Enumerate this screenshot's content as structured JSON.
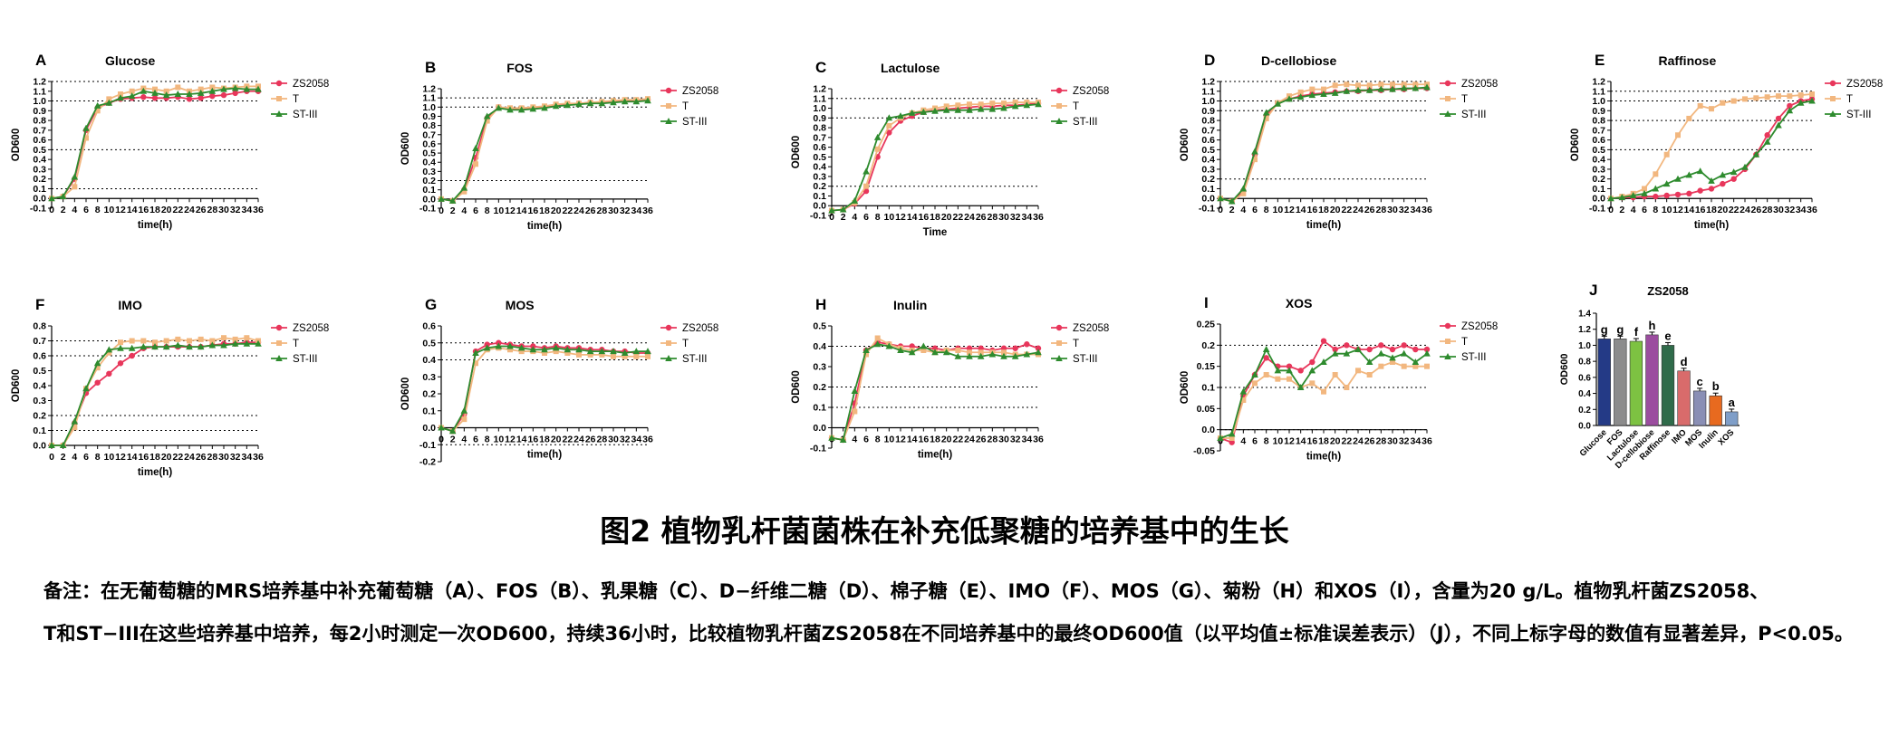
{
  "figure": {
    "title": "图2 植物乳杆菌菌株在补充低聚糖的培养基中的生长",
    "note": [
      "备注：在无葡萄糖的MRS培养基中补充葡萄糖（A）、FOS（B）、乳果糖（C）、D−纤维二糖（D）、棉子糖（E）、IMO（F）、MOS（G）、菊粉（H）和XOS（I），含量为20 g/L。植物乳杆菌ZS2058、",
      "T和ST−III在这些培养基中培养，每2小时测定一次OD600，持续36小时，比较植物乳杆菌ZS2058在不同培养基中的最终OD600值（以平均值±标准误差表示）（J），不同上标字母的数值有显著差异，P<0.05。"
    ]
  },
  "colors": {
    "ZS2058": "#e8365b",
    "T": "#f2b77f",
    "ST-III": "#2e8b2e"
  },
  "chart_data": [
    {
      "letter": "A",
      "type": "line",
      "title": "Glucose",
      "xlabel": "time(h)",
      "ylabel": "OD600",
      "ylim": [
        -0.1,
        1.2
      ],
      "yticks": [
        -0.1,
        0,
        0.1,
        0.2,
        0.3,
        0.4,
        0.5,
        0.6,
        0.7,
        0.8,
        0.9,
        1.0,
        1.1,
        1.2
      ],
      "dotted_lines": [
        0.1,
        0.5,
        1.0,
        1.2
      ],
      "x": [
        0,
        2,
        4,
        6,
        8,
        10,
        12,
        14,
        16,
        18,
        20,
        22,
        24,
        26,
        28,
        30,
        32,
        34,
        36
      ],
      "series": [
        {
          "name": "ZS2058",
          "values": [
            0,
            0.02,
            0.2,
            0.7,
            0.93,
            0.98,
            1.02,
            1.03,
            1.04,
            1.03,
            1.03,
            1.04,
            1.02,
            1.03,
            1.05,
            1.06,
            1.08,
            1.1,
            1.1
          ]
        },
        {
          "name": "T",
          "values": [
            0,
            0.02,
            0.12,
            0.62,
            0.9,
            1.02,
            1.07,
            1.1,
            1.13,
            1.12,
            1.1,
            1.14,
            1.1,
            1.12,
            1.14,
            1.13,
            1.14,
            1.15,
            1.15
          ]
        },
        {
          "name": "ST-III",
          "values": [
            0,
            0.02,
            0.22,
            0.72,
            0.95,
            0.98,
            1.03,
            1.05,
            1.1,
            1.08,
            1.06,
            1.07,
            1.07,
            1.08,
            1.1,
            1.12,
            1.13,
            1.12,
            1.12
          ]
        }
      ]
    },
    {
      "letter": "B",
      "type": "line",
      "title": "FOS",
      "xlabel": "time(h)",
      "ylabel": "OD600",
      "ylim": [
        -0.1,
        1.2
      ],
      "yticks": [
        -0.1,
        0,
        0.1,
        0.2,
        0.3,
        0.4,
        0.5,
        0.6,
        0.7,
        0.8,
        0.9,
        1.0,
        1.1,
        1.2
      ],
      "dotted_lines": [
        0.2,
        1.0,
        1.1
      ],
      "x": [
        0,
        2,
        4,
        6,
        8,
        10,
        12,
        14,
        16,
        18,
        20,
        22,
        24,
        26,
        28,
        30,
        32,
        34,
        36
      ],
      "series": [
        {
          "name": "ZS2058",
          "values": [
            0,
            -0.02,
            0.1,
            0.45,
            0.88,
            1.0,
            0.98,
            0.98,
            0.99,
            1.0,
            1.02,
            1.03,
            1.04,
            1.05,
            1.05,
            1.06,
            1.07,
            1.07,
            1.08
          ]
        },
        {
          "name": "T",
          "values": [
            0,
            -0.02,
            0.08,
            0.38,
            0.85,
            1.0,
            0.99,
            0.99,
            1.0,
            1.01,
            1.03,
            1.04,
            1.04,
            1.05,
            1.06,
            1.07,
            1.08,
            1.08,
            1.09
          ]
        },
        {
          "name": "ST-III",
          "values": [
            0,
            -0.02,
            0.12,
            0.55,
            0.9,
            0.99,
            0.97,
            0.97,
            0.98,
            0.99,
            1.01,
            1.02,
            1.03,
            1.04,
            1.04,
            1.05,
            1.06,
            1.06,
            1.07
          ]
        }
      ]
    },
    {
      "letter": "C",
      "type": "line",
      "title": "Lactulose",
      "xlabel": "Time",
      "ylabel": "OD600",
      "ylim": [
        -0.1,
        1.2
      ],
      "yticks": [
        -0.1,
        0,
        0.1,
        0.2,
        0.3,
        0.4,
        0.5,
        0.6,
        0.7,
        0.8,
        0.9,
        1.0,
        1.1,
        1.2
      ],
      "dotted_lines": [
        0.2,
        0.9,
        1.1
      ],
      "x": [
        0,
        2,
        4,
        6,
        8,
        10,
        12,
        14,
        16,
        18,
        20,
        22,
        24,
        26,
        28,
        30,
        32,
        34,
        36
      ],
      "series": [
        {
          "name": "ZS2058",
          "values": [
            -0.05,
            -0.04,
            0.02,
            0.15,
            0.5,
            0.75,
            0.87,
            0.92,
            0.96,
            0.98,
            0.99,
            1.0,
            1.01,
            1.02,
            1.02,
            1.03,
            1.03,
            1.04,
            1.05
          ]
        },
        {
          "name": "T",
          "values": [
            -0.05,
            -0.04,
            0.03,
            0.2,
            0.58,
            0.82,
            0.9,
            0.95,
            0.98,
            1.0,
            1.02,
            1.03,
            1.04,
            1.04,
            1.05,
            1.05,
            1.06,
            1.06,
            1.06
          ]
        },
        {
          "name": "ST-III",
          "values": [
            -0.05,
            -0.04,
            0.05,
            0.35,
            0.7,
            0.9,
            0.92,
            0.95,
            0.96,
            0.97,
            0.98,
            0.98,
            0.98,
            0.99,
            0.99,
            1.0,
            1.02,
            1.03,
            1.04
          ]
        }
      ]
    },
    {
      "letter": "D",
      "type": "line",
      "title": "D-cellobiose",
      "xlabel": "time(h)",
      "ylabel": "OD600",
      "ylim": [
        -0.1,
        1.2
      ],
      "yticks": [
        -0.1,
        0,
        0.1,
        0.2,
        0.3,
        0.4,
        0.5,
        0.6,
        0.7,
        0.8,
        0.9,
        1.0,
        1.1,
        1.2
      ],
      "dotted_lines": [
        0.2,
        0.9,
        1.0,
        1.2
      ],
      "x": [
        0,
        2,
        4,
        6,
        8,
        10,
        12,
        14,
        16,
        18,
        20,
        22,
        24,
        26,
        28,
        30,
        32,
        34,
        36
      ],
      "series": [
        {
          "name": "ZS2058",
          "values": [
            0,
            -0.03,
            0.08,
            0.45,
            0.85,
            0.98,
            1.02,
            1.05,
            1.07,
            1.08,
            1.09,
            1.1,
            1.1,
            1.11,
            1.11,
            1.12,
            1.12,
            1.13,
            1.13
          ]
        },
        {
          "name": "T",
          "values": [
            0,
            -0.03,
            0.05,
            0.4,
            0.82,
            0.98,
            1.05,
            1.09,
            1.12,
            1.12,
            1.16,
            1.17,
            1.16,
            1.16,
            1.17,
            1.17,
            1.17,
            1.17,
            1.17
          ]
        },
        {
          "name": "ST-III",
          "values": [
            0,
            -0.03,
            0.1,
            0.48,
            0.88,
            0.97,
            1.02,
            1.04,
            1.06,
            1.07,
            1.08,
            1.1,
            1.11,
            1.11,
            1.12,
            1.12,
            1.13,
            1.13,
            1.14
          ]
        }
      ]
    },
    {
      "letter": "E",
      "type": "line",
      "title": "Raffinose",
      "xlabel": "time(h)",
      "ylabel": "OD600",
      "ylim": [
        -0.1,
        1.2
      ],
      "yticks": [
        -0.1,
        0,
        0.1,
        0.2,
        0.3,
        0.4,
        0.5,
        0.6,
        0.7,
        0.8,
        0.9,
        1.0,
        1.1,
        1.2
      ],
      "dotted_lines": [
        0.5,
        0.8,
        1.0,
        1.1
      ],
      "x": [
        0,
        2,
        4,
        6,
        8,
        10,
        12,
        14,
        16,
        18,
        20,
        22,
        24,
        26,
        28,
        30,
        32,
        34,
        36
      ],
      "series": [
        {
          "name": "ZS2058",
          "values": [
            0,
            0.01,
            0.01,
            0.02,
            0.02,
            0.03,
            0.04,
            0.05,
            0.08,
            0.1,
            0.15,
            0.2,
            0.3,
            0.45,
            0.65,
            0.82,
            0.95,
            1.0,
            1.02
          ]
        },
        {
          "name": "T",
          "values": [
            0,
            0.02,
            0.05,
            0.1,
            0.25,
            0.45,
            0.65,
            0.82,
            0.95,
            0.92,
            0.98,
            1.0,
            1.02,
            1.03,
            1.04,
            1.05,
            1.05,
            1.06,
            1.07
          ]
        },
        {
          "name": "ST-III",
          "values": [
            0,
            0.01,
            0.03,
            0.05,
            0.1,
            0.15,
            0.2,
            0.24,
            0.28,
            0.18,
            0.24,
            0.27,
            0.32,
            0.45,
            0.58,
            0.75,
            0.9,
            0.98,
            1.0
          ]
        }
      ]
    },
    {
      "letter": "F",
      "type": "line",
      "title": "IMO",
      "xlabel": "time(h)",
      "ylabel": "OD600",
      "ylim": [
        0,
        0.8
      ],
      "yticks": [
        0,
        0.1,
        0.2,
        0.3,
        0.4,
        0.5,
        0.6,
        0.7,
        0.8
      ],
      "dotted_lines": [
        0.1,
        0.2,
        0.6,
        0.7
      ],
      "x": [
        0,
        2,
        4,
        6,
        8,
        10,
        12,
        14,
        16,
        18,
        20,
        22,
        24,
        26,
        28,
        30,
        32,
        34,
        36
      ],
      "series": [
        {
          "name": "ZS2058",
          "values": [
            0,
            0,
            0.15,
            0.35,
            0.42,
            0.48,
            0.55,
            0.6,
            0.65,
            0.66,
            0.66,
            0.66,
            0.66,
            0.66,
            0.67,
            0.68,
            0.68,
            0.69,
            0.69
          ]
        },
        {
          "name": "T",
          "values": [
            0,
            0,
            0.12,
            0.38,
            0.52,
            0.62,
            0.69,
            0.7,
            0.7,
            0.69,
            0.7,
            0.71,
            0.7,
            0.71,
            0.7,
            0.72,
            0.71,
            0.72,
            0.7
          ]
        },
        {
          "name": "ST-III",
          "values": [
            0,
            0,
            0.16,
            0.38,
            0.55,
            0.64,
            0.65,
            0.65,
            0.66,
            0.66,
            0.66,
            0.67,
            0.66,
            0.66,
            0.67,
            0.67,
            0.68,
            0.68,
            0.68
          ]
        }
      ]
    },
    {
      "letter": "G",
      "type": "line",
      "title": "MOS",
      "xlabel": "time(h)",
      "ylabel": "OD600",
      "ylim": [
        -0.2,
        0.6
      ],
      "yticks": [
        -0.2,
        -0.1,
        0,
        0.1,
        0.2,
        0.3,
        0.4,
        0.5,
        0.6
      ],
      "dotted_lines": [
        -0.1,
        0.4,
        0.5
      ],
      "x": [
        0,
        2,
        4,
        6,
        8,
        10,
        12,
        14,
        16,
        18,
        20,
        22,
        24,
        26,
        28,
        30,
        32,
        34,
        36
      ],
      "series": [
        {
          "name": "ZS2058",
          "values": [
            0,
            -0.02,
            0.08,
            0.45,
            0.49,
            0.5,
            0.49,
            0.48,
            0.48,
            0.47,
            0.48,
            0.47,
            0.47,
            0.46,
            0.46,
            0.45,
            0.45,
            0.44,
            0.44
          ]
        },
        {
          "name": "T",
          "values": [
            0,
            -0.02,
            0.05,
            0.38,
            0.46,
            0.47,
            0.46,
            0.45,
            0.45,
            0.44,
            0.45,
            0.44,
            0.43,
            0.43,
            0.43,
            0.42,
            0.42,
            0.42,
            0.42
          ]
        },
        {
          "name": "ST-III",
          "values": [
            0,
            -0.02,
            0.1,
            0.44,
            0.47,
            0.48,
            0.48,
            0.47,
            0.46,
            0.46,
            0.47,
            0.46,
            0.46,
            0.45,
            0.45,
            0.45,
            0.44,
            0.45,
            0.45
          ]
        }
      ]
    },
    {
      "letter": "H",
      "type": "line",
      "title": "Inulin",
      "xlabel": "time(h)",
      "ylabel": "OD600",
      "ylim": [
        -0.1,
        0.5
      ],
      "yticks": [
        -0.1,
        0,
        0.1,
        0.2,
        0.3,
        0.4,
        0.5
      ],
      "dotted_lines": [
        0.1,
        0.2,
        0.4
      ],
      "x": [
        0,
        2,
        4,
        6,
        8,
        10,
        12,
        14,
        16,
        18,
        20,
        22,
        24,
        26,
        28,
        30,
        32,
        34,
        36
      ],
      "series": [
        {
          "name": "ZS2058",
          "values": [
            -0.05,
            -0.06,
            0.12,
            0.38,
            0.42,
            0.41,
            0.4,
            0.4,
            0.39,
            0.39,
            0.38,
            0.39,
            0.39,
            0.39,
            0.38,
            0.39,
            0.39,
            0.41,
            0.39
          ]
        },
        {
          "name": "T",
          "values": [
            -0.05,
            -0.06,
            0.08,
            0.36,
            0.44,
            0.41,
            0.39,
            0.38,
            0.38,
            0.37,
            0.38,
            0.38,
            0.37,
            0.37,
            0.37,
            0.37,
            0.36,
            0.36,
            0.36
          ]
        },
        {
          "name": "ST-III",
          "values": [
            -0.05,
            -0.06,
            0.18,
            0.38,
            0.41,
            0.4,
            0.38,
            0.37,
            0.4,
            0.37,
            0.37,
            0.35,
            0.35,
            0.35,
            0.36,
            0.35,
            0.35,
            0.36,
            0.37
          ]
        }
      ]
    },
    {
      "letter": "I",
      "type": "line",
      "title": "XOS",
      "xlabel": "time(h)",
      "ylabel": "OD600",
      "ylim": [
        -0.05,
        0.25
      ],
      "yticks": [
        -0.05,
        0,
        0.05,
        0.1,
        0.15,
        0.2,
        0.25
      ],
      "dotted_lines": [
        0,
        0.1,
        0.2
      ],
      "x": [
        0,
        2,
        4,
        6,
        8,
        10,
        12,
        14,
        16,
        18,
        20,
        22,
        24,
        26,
        28,
        30,
        32,
        34,
        36
      ],
      "series": [
        {
          "name": "ZS2058",
          "values": [
            -0.02,
            -0.03,
            0.08,
            0.13,
            0.17,
            0.15,
            0.15,
            0.14,
            0.16,
            0.21,
            0.19,
            0.2,
            0.19,
            0.19,
            0.2,
            0.19,
            0.2,
            0.19,
            0.19
          ]
        },
        {
          "name": "T",
          "values": [
            -0.02,
            -0.02,
            0.07,
            0.11,
            0.13,
            0.12,
            0.12,
            0.1,
            0.11,
            0.09,
            0.13,
            0.1,
            0.14,
            0.13,
            0.15,
            0.16,
            0.15,
            0.15,
            0.15
          ]
        },
        {
          "name": "ST-III",
          "values": [
            -0.02,
            -0.01,
            0.09,
            0.13,
            0.19,
            0.14,
            0.14,
            0.1,
            0.14,
            0.16,
            0.18,
            0.18,
            0.19,
            0.16,
            0.18,
            0.17,
            0.18,
            0.16,
            0.18
          ]
        }
      ]
    },
    {
      "letter": "J",
      "type": "bar",
      "title": "ZS2058",
      "ylabel": "OD600",
      "ylim": [
        0,
        1.4
      ],
      "yticks": [
        0,
        0.2,
        0.4,
        0.6,
        0.8,
        1.0,
        1.2,
        1.4
      ],
      "categories": [
        "Glucose",
        "FOS",
        "Lactulose",
        "D-cellobiose",
        "Raffinose",
        "IMO",
        "MOS",
        "Inulin",
        "XOS"
      ],
      "values": [
        1.08,
        1.08,
        1.05,
        1.13,
        1.0,
        0.68,
        0.43,
        0.37,
        0.17
      ],
      "letters": [
        "g",
        "g",
        "f",
        "h",
        "e",
        "d",
        "c",
        "b",
        "a"
      ],
      "bar_colors": [
        "#243a86",
        "#8c8c8c",
        "#7dc242",
        "#9b4d9f",
        "#2f6b4a",
        "#d96b6b",
        "#8a8fb5",
        "#e86a1f",
        "#7f9ec8"
      ]
    }
  ]
}
